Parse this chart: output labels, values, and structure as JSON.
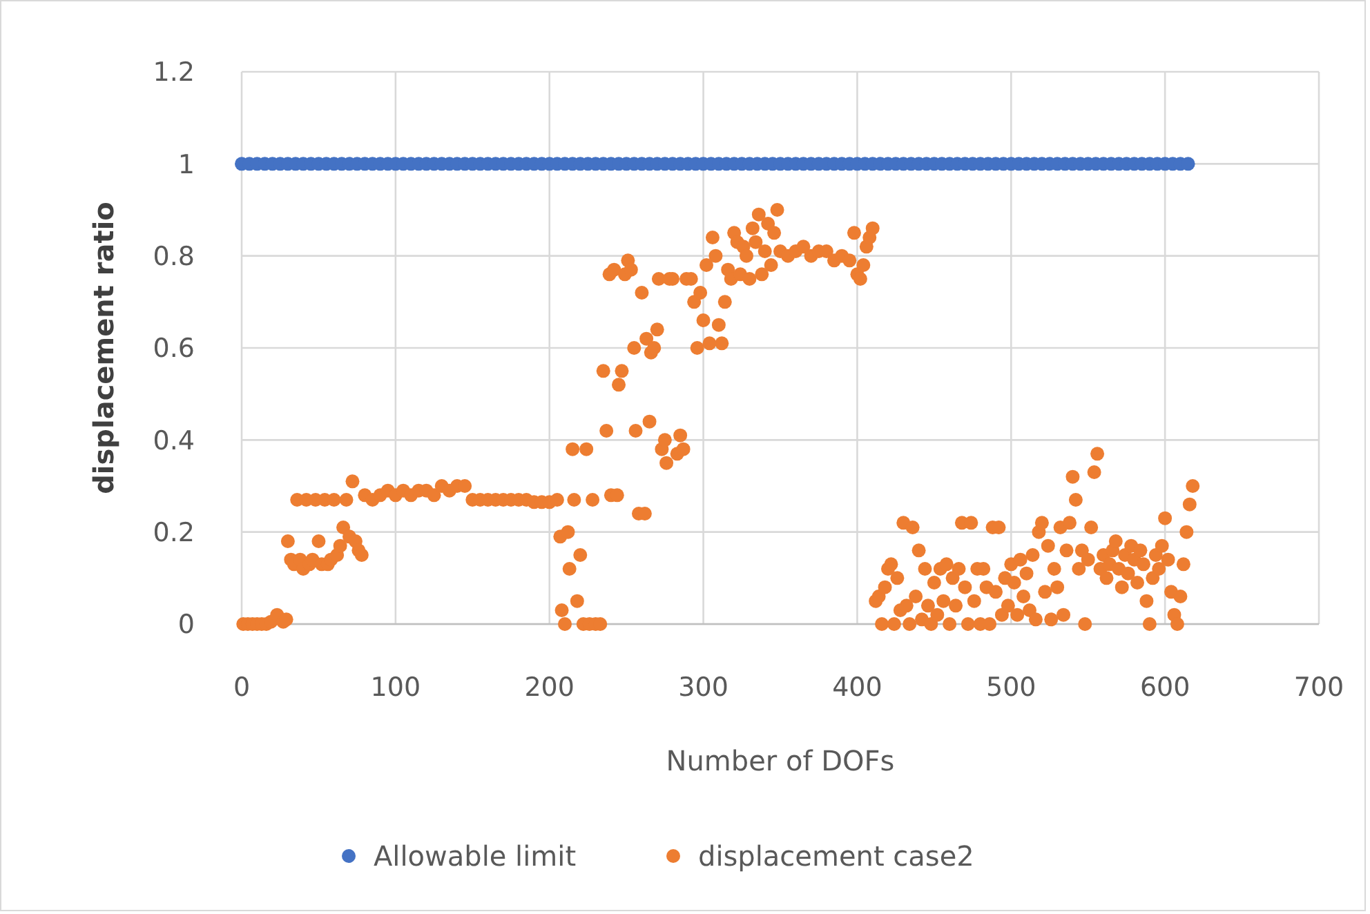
{
  "chart_data": {
    "type": "scatter",
    "xlabel": "Number of DOFs",
    "ylabel": "displacement ratio",
    "xlim": [
      0,
      700
    ],
    "ylim": [
      0,
      1.2
    ],
    "xticks": [
      0,
      100,
      200,
      300,
      400,
      500,
      600,
      700
    ],
    "yticks": [
      0,
      0.2,
      0.4,
      0.6,
      0.8,
      1,
      1.2
    ],
    "grid": true,
    "legend": "bottom",
    "marker": "circle",
    "series": [
      {
        "name": "Allowable limit",
        "color": "#4472c4",
        "x": [
          0,
          5,
          10,
          15,
          20,
          25,
          30,
          35,
          40,
          45,
          50,
          55,
          60,
          65,
          70,
          75,
          80,
          85,
          90,
          95,
          100,
          105,
          110,
          115,
          120,
          125,
          130,
          135,
          140,
          145,
          150,
          155,
          160,
          165,
          170,
          175,
          180,
          185,
          190,
          195,
          200,
          205,
          210,
          215,
          220,
          225,
          230,
          235,
          240,
          245,
          250,
          255,
          260,
          265,
          270,
          275,
          280,
          285,
          290,
          295,
          300,
          305,
          310,
          315,
          320,
          325,
          330,
          335,
          340,
          345,
          350,
          355,
          360,
          365,
          370,
          375,
          380,
          385,
          390,
          395,
          400,
          405,
          410,
          415,
          420,
          425,
          430,
          435,
          440,
          445,
          450,
          455,
          460,
          465,
          470,
          475,
          480,
          485,
          490,
          495,
          500,
          505,
          510,
          515,
          520,
          525,
          530,
          535,
          540,
          545,
          550,
          555,
          560,
          565,
          570,
          575,
          580,
          585,
          590,
          595,
          600,
          605,
          610,
          615
        ],
        "values": [
          1,
          1,
          1,
          1,
          1,
          1,
          1,
          1,
          1,
          1,
          1,
          1,
          1,
          1,
          1,
          1,
          1,
          1,
          1,
          1,
          1,
          1,
          1,
          1,
          1,
          1,
          1,
          1,
          1,
          1,
          1,
          1,
          1,
          1,
          1,
          1,
          1,
          1,
          1,
          1,
          1,
          1,
          1,
          1,
          1,
          1,
          1,
          1,
          1,
          1,
          1,
          1,
          1,
          1,
          1,
          1,
          1,
          1,
          1,
          1,
          1,
          1,
          1,
          1,
          1,
          1,
          1,
          1,
          1,
          1,
          1,
          1,
          1,
          1,
          1,
          1,
          1,
          1,
          1,
          1,
          1,
          1,
          1,
          1,
          1,
          1,
          1,
          1,
          1,
          1,
          1,
          1,
          1,
          1,
          1,
          1,
          1,
          1,
          1,
          1,
          1,
          1,
          1,
          1,
          1,
          1,
          1,
          1,
          1,
          1,
          1,
          1,
          1,
          1,
          1,
          1,
          1,
          1,
          1,
          1,
          1,
          1,
          1,
          1
        ]
      },
      {
        "name": "displacement case2",
        "color": "#ed7d31",
        "x": [
          1,
          4,
          7,
          10,
          13,
          16,
          19,
          23,
          27,
          29,
          30,
          32,
          34,
          36,
          38,
          40,
          42,
          44,
          46,
          48,
          50,
          52,
          54,
          56,
          58,
          60,
          62,
          64,
          66,
          68,
          70,
          72,
          74,
          76,
          78,
          80,
          85,
          90,
          95,
          100,
          105,
          110,
          115,
          120,
          125,
          130,
          135,
          140,
          145,
          150,
          155,
          160,
          165,
          170,
          175,
          180,
          185,
          190,
          195,
          200,
          205,
          207,
          208,
          210,
          212,
          213,
          215,
          216,
          218,
          220,
          222,
          224,
          226,
          228,
          230,
          233,
          235,
          237,
          239,
          240,
          242,
          244,
          245,
          247,
          249,
          251,
          253,
          255,
          256,
          258,
          260,
          262,
          263,
          265,
          266,
          268,
          270,
          271,
          273,
          275,
          276,
          278,
          280,
          283,
          285,
          287,
          289,
          292,
          294,
          296,
          298,
          300,
          302,
          304,
          306,
          308,
          310,
          312,
          314,
          316,
          318,
          320,
          322,
          324,
          326,
          328,
          330,
          332,
          334,
          336,
          338,
          340,
          342,
          344,
          346,
          348,
          350,
          355,
          360,
          365,
          370,
          375,
          380,
          385,
          390,
          395,
          398,
          400,
          402,
          404,
          406,
          408,
          410,
          412,
          414,
          416,
          418,
          420,
          422,
          424,
          426,
          428,
          430,
          432,
          434,
          436,
          438,
          440,
          442,
          444,
          446,
          448,
          450,
          452,
          454,
          456,
          458,
          460,
          462,
          464,
          466,
          468,
          470,
          472,
          474,
          476,
          478,
          480,
          482,
          484,
          486,
          488,
          490,
          492,
          494,
          496,
          498,
          500,
          502,
          504,
          506,
          508,
          510,
          512,
          514,
          516,
          518,
          520,
          522,
          524,
          526,
          528,
          530,
          532,
          534,
          536,
          538,
          540,
          542,
          544,
          546,
          548,
          550,
          552,
          554,
          556,
          558,
          560,
          562,
          564,
          566,
          568,
          570,
          572,
          574,
          576,
          578,
          580,
          582,
          584,
          586,
          588,
          590,
          592,
          594,
          596,
          598,
          600,
          602,
          604,
          606,
          608,
          610,
          612,
          614,
          616,
          618
        ],
        "values": [
          0,
          0,
          0,
          0,
          0,
          0,
          0.005,
          0.02,
          0.005,
          0.01,
          0.18,
          0.14,
          0.13,
          0.27,
          0.14,
          0.12,
          0.27,
          0.13,
          0.14,
          0.27,
          0.18,
          0.13,
          0.27,
          0.13,
          0.14,
          0.27,
          0.15,
          0.17,
          0.21,
          0.27,
          0.19,
          0.31,
          0.18,
          0.16,
          0.15,
          0.28,
          0.27,
          0.28,
          0.29,
          0.28,
          0.29,
          0.28,
          0.29,
          0.29,
          0.28,
          0.3,
          0.29,
          0.3,
          0.3,
          0.27,
          0.27,
          0.27,
          0.27,
          0.27,
          0.27,
          0.27,
          0.27,
          0.265,
          0.265,
          0.265,
          0.27,
          0.19,
          0.03,
          0,
          0.2,
          0.12,
          0.38,
          0.27,
          0.05,
          0.15,
          0,
          0.38,
          0,
          0.27,
          0,
          0,
          0.55,
          0.42,
          0.76,
          0.28,
          0.77,
          0.28,
          0.52,
          0.55,
          0.76,
          0.79,
          0.77,
          0.6,
          0.42,
          0.24,
          0.72,
          0.24,
          0.62,
          0.44,
          0.59,
          0.6,
          0.64,
          0.75,
          0.38,
          0.4,
          0.35,
          0.75,
          0.75,
          0.37,
          0.41,
          0.38,
          0.75,
          0.75,
          0.7,
          0.6,
          0.72,
          0.66,
          0.78,
          0.61,
          0.84,
          0.8,
          0.65,
          0.61,
          0.7,
          0.77,
          0.75,
          0.85,
          0.83,
          0.76,
          0.82,
          0.8,
          0.75,
          0.86,
          0.83,
          0.89,
          0.76,
          0.81,
          0.87,
          0.78,
          0.85,
          0.9,
          0.81,
          0.8,
          0.81,
          0.82,
          0.8,
          0.81,
          0.81,
          0.79,
          0.8,
          0.79,
          0.85,
          0.76,
          0.75,
          0.78,
          0.82,
          0.84,
          0.86,
          0.05,
          0.06,
          0,
          0.08,
          0.12,
          0.13,
          0,
          0.1,
          0.03,
          0.22,
          0.04,
          0,
          0.21,
          0.06,
          0.16,
          0.01,
          0.12,
          0.04,
          0,
          0.09,
          0.02,
          0.12,
          0.05,
          0.13,
          0,
          0.1,
          0.04,
          0.12,
          0.22,
          0.08,
          0,
          0.22,
          0.05,
          0.12,
          0,
          0.12,
          0.08,
          0,
          0.21,
          0.07,
          0.21,
          0.02,
          0.1,
          0.04,
          0.13,
          0.09,
          0.02,
          0.14,
          0.06,
          0.11,
          0.03,
          0.15,
          0.01,
          0.2,
          0.22,
          0.07,
          0.17,
          0.01,
          0.12,
          0.08,
          0.21,
          0.02,
          0.16,
          0.22,
          0.32,
          0.27,
          0.12,
          0.16,
          0,
          0.14,
          0.21,
          0.33,
          0.37,
          0.12,
          0.15,
          0.1,
          0.13,
          0.16,
          0.18,
          0.12,
          0.08,
          0.15,
          0.11,
          0.17,
          0.14,
          0.09,
          0.16,
          0.13,
          0.05,
          0,
          0.1,
          0.15,
          0.12,
          0.17,
          0.23,
          0.14,
          0.07,
          0.02,
          0,
          0.06,
          0.13,
          0.2,
          0.26,
          0.3
        ]
      }
    ]
  }
}
